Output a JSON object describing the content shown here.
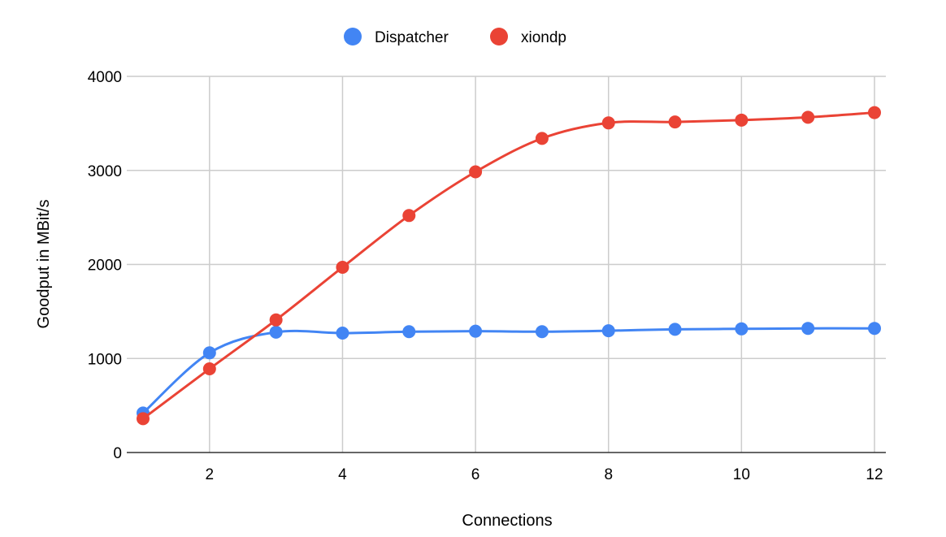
{
  "chart_data": {
    "type": "line",
    "title": "",
    "xlabel": "Connections",
    "ylabel": "Goodput in MBit/s",
    "x": [
      1,
      2,
      3,
      4,
      5,
      6,
      7,
      8,
      9,
      10,
      11,
      12
    ],
    "xlim": [
      1,
      12
    ],
    "ylim": [
      0,
      4000
    ],
    "x_ticks": [
      2,
      4,
      6,
      8,
      10,
      12
    ],
    "y_ticks": [
      0,
      1000,
      2000,
      3000,
      4000
    ],
    "x_tick_labels": [
      "2",
      "4",
      "6",
      "8",
      "10",
      "12"
    ],
    "y_tick_labels": [
      "0",
      "1000",
      "2000",
      "3000",
      "4000"
    ],
    "grid": true,
    "legend_position": "top",
    "series": [
      {
        "name": "Dispatcher",
        "color": "#4285f4",
        "values": [
          420,
          1060,
          1280,
          1270,
          1285,
          1290,
          1285,
          1295,
          1310,
          1315,
          1320,
          1320
        ]
      },
      {
        "name": "xiondp",
        "color": "#ea4335",
        "values": [
          360,
          890,
          1410,
          1970,
          2520,
          2985,
          3340,
          3505,
          3515,
          3535,
          3565,
          3615
        ]
      }
    ]
  }
}
